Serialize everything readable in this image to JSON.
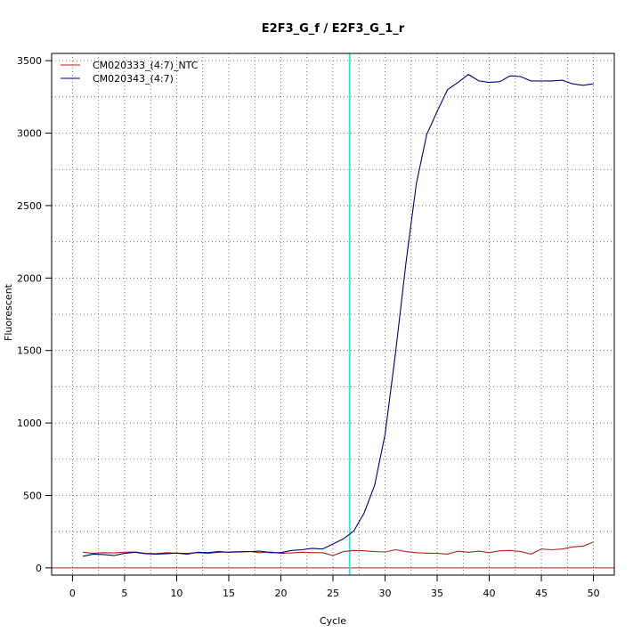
{
  "chart_data": {
    "type": "line",
    "title": "E2F3_G_f / E2F3_G_1_r",
    "xlabel": "Cycle",
    "ylabel": "Fluorescent",
    "xlim": [
      -2,
      52
    ],
    "ylim": [
      -50,
      3550
    ],
    "xticks": [
      0,
      5,
      10,
      15,
      20,
      25,
      30,
      35,
      40,
      45,
      50
    ],
    "yticks": [
      0,
      500,
      1000,
      1500,
      2000,
      2500,
      3000,
      3500
    ],
    "grid": "dotted",
    "legend_position": "top-left",
    "threshold": {
      "x": 26.6,
      "color": "#40e0e0"
    },
    "baseline": {
      "y": 0,
      "color": "#b22222"
    },
    "series": [
      {
        "name": "CM020333_(4:7)_NTC",
        "color": "#b22222",
        "x": [
          1,
          2,
          3,
          4,
          5,
          6,
          7,
          8,
          9,
          10,
          11,
          12,
          13,
          14,
          15,
          16,
          17,
          18,
          19,
          20,
          21,
          22,
          23,
          24,
          25,
          26,
          27,
          28,
          29,
          30,
          31,
          32,
          33,
          34,
          35,
          36,
          37,
          38,
          39,
          40,
          41,
          42,
          43,
          44,
          45,
          46,
          47,
          48,
          49,
          50
        ],
        "y": [
          108,
          100,
          105,
          103,
          108,
          110,
          100,
          98,
          105,
          102,
          100,
          105,
          100,
          108,
          110,
          112,
          113,
          105,
          110,
          100,
          103,
          108,
          105,
          105,
          85,
          112,
          120,
          118,
          112,
          110,
          125,
          112,
          105,
          102,
          100,
          95,
          115,
          108,
          115,
          105,
          118,
          120,
          112,
          95,
          130,
          125,
          130,
          145,
          150,
          178
        ]
      },
      {
        "name": "CM020343_(4:7)",
        "color": "#00007f",
        "x": [
          1,
          2,
          3,
          4,
          5,
          6,
          7,
          8,
          9,
          10,
          11,
          12,
          13,
          14,
          15,
          16,
          17,
          18,
          19,
          20,
          21,
          22,
          23,
          24,
          25,
          26,
          27,
          28,
          29,
          30,
          31,
          32,
          33,
          34,
          35,
          36,
          37,
          38,
          39,
          40,
          41,
          42,
          43,
          44,
          45,
          46,
          47,
          48,
          49,
          50
        ],
        "y": [
          80,
          95,
          92,
          85,
          100,
          108,
          98,
          95,
          98,
          102,
          95,
          108,
          105,
          112,
          108,
          110,
          112,
          115,
          105,
          105,
          120,
          125,
          135,
          130,
          165,
          200,
          255,
          380,
          570,
          920,
          1480,
          2100,
          2650,
          2990,
          3150,
          3300,
          3350,
          3405,
          3360,
          3350,
          3355,
          3395,
          3390,
          3360,
          3360,
          3360,
          3365,
          3340,
          3330,
          3340
        ]
      }
    ]
  }
}
